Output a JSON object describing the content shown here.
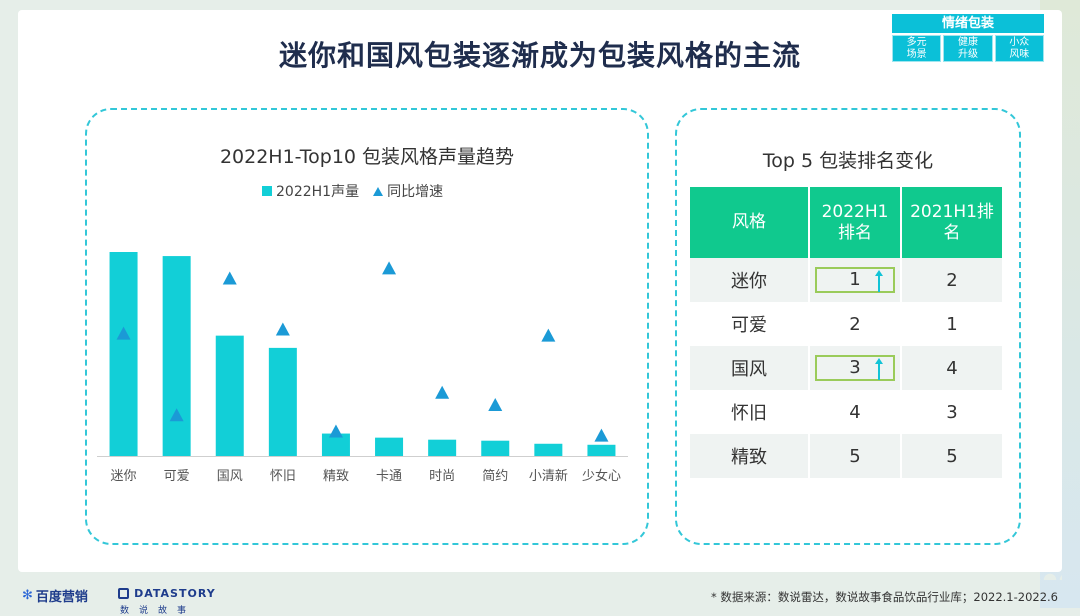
{
  "title": "迷你和国风包装逐渐成为包装风格的主流",
  "badge": {
    "header": "情绪包装",
    "cells": [
      {
        "line1": "多元",
        "line2": "场景"
      },
      {
        "line1": "健康",
        "line2": "升级"
      },
      {
        "line1": "小众",
        "line2": "风味"
      }
    ]
  },
  "chart_data": {
    "type": "bar",
    "title": "2022H1-Top10 包装风格声量趋势",
    "categories": [
      "迷你",
      "可爱",
      "国风",
      "怀旧",
      "精致",
      "卡通",
      "时尚",
      "简约",
      "小清新",
      "少女心"
    ],
    "series": [
      {
        "name": "2022H1声量",
        "kind": "bar",
        "color": "#12cfd7",
        "values": [
          100,
          98,
          59,
          53,
          11,
          9,
          8,
          7.5,
          6,
          5.5
        ]
      },
      {
        "name": "同比增速",
        "kind": "triangle",
        "color": "#1b9ad6",
        "values": [
          60,
          20,
          87,
          62,
          12,
          92,
          31,
          25,
          59,
          10
        ]
      }
    ],
    "legend_position": "top",
    "grid": false
  },
  "table": {
    "title": "Top 5 包装排名变化",
    "headers": [
      "风格",
      "2022H1\n排名",
      "2021H1排\n名"
    ],
    "rows": [
      {
        "style": "迷你",
        "rank_2022": "1",
        "rank_2021": "2",
        "highlight": true
      },
      {
        "style": "可爱",
        "rank_2022": "2",
        "rank_2021": "1",
        "highlight": false
      },
      {
        "style": "国风",
        "rank_2022": "3",
        "rank_2021": "4",
        "highlight": true
      },
      {
        "style": "怀旧",
        "rank_2022": "4",
        "rank_2021": "3",
        "highlight": false
      },
      {
        "style": "精致",
        "rank_2022": "5",
        "rank_2021": "5",
        "highlight": false
      }
    ]
  },
  "footer": {
    "logo1": "百度营销",
    "logo2": "DATASTORY",
    "logo2_sub": "数说故事",
    "source": "* 数据来源：数说雷达，数说故事食品饮品行业库；2022.1-2022.6"
  },
  "colors": {
    "accent": "#0bc0d8",
    "table_header": "#10c98e",
    "highlight_border": "#9acb5a",
    "arrow": "#12c3d6"
  }
}
